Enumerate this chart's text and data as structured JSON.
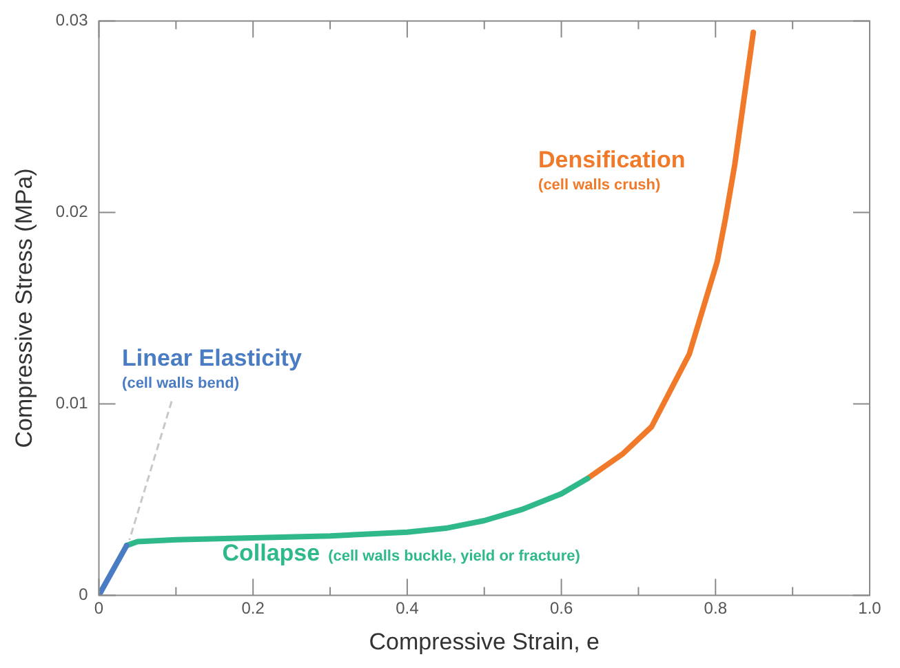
{
  "chart_data": {
    "type": "line",
    "xlabel": "Compressive Strain, e",
    "ylabel": "Compressive Stress (MPa)",
    "xlim": [
      0,
      1
    ],
    "ylim": [
      0,
      0.03
    ],
    "xticks": [
      0,
      {
        "value": 0.1,
        "label": null
      },
      0.2,
      {
        "value": 0.3,
        "label": null
      },
      0.4,
      {
        "value": 0.5,
        "label": null
      },
      0.6,
      {
        "value": 0.7,
        "label": null
      },
      0.8,
      {
        "value": 0.9,
        "label": null
      },
      {
        "value": 1,
        "label": "1.0"
      }
    ],
    "yticks": [
      0,
      0.01,
      0.02,
      0.03
    ],
    "grid": false,
    "legend": false,
    "marker": "none",
    "line_style": "solid",
    "series": [
      {
        "name": "Linear Elasticity",
        "color": "#4a7cc4",
        "x": [
          0,
          0.036
        ],
        "values": [
          0,
          0.0026
        ]
      },
      {
        "name": "Collapse",
        "color": "#2fb88a",
        "x": [
          0.036,
          0.05,
          0.1,
          0.2,
          0.3,
          0.4,
          0.45,
          0.5,
          0.55,
          0.6,
          0.634
        ],
        "values": [
          0.0026,
          0.0028,
          0.0029,
          0.003,
          0.0031,
          0.0033,
          0.0035,
          0.0039,
          0.0045,
          0.0053,
          0.0061
        ]
      },
      {
        "name": "Densification",
        "color": "#f07a2a",
        "x": [
          0.634,
          0.68,
          0.717,
          0.766,
          0.802,
          0.813,
          0.825,
          0.849
        ],
        "values": [
          0.0061,
          0.0074,
          0.0088,
          0.0126,
          0.0174,
          0.0197,
          0.0225,
          0.0294
        ]
      }
    ],
    "annotations": [
      {
        "text": "(cell walls bend)",
        "x": 0.036,
        "y": 0.0026
      },
      "(cell walls buckle, yield or fracture)",
      "(cell walls crush)"
    ]
  }
}
